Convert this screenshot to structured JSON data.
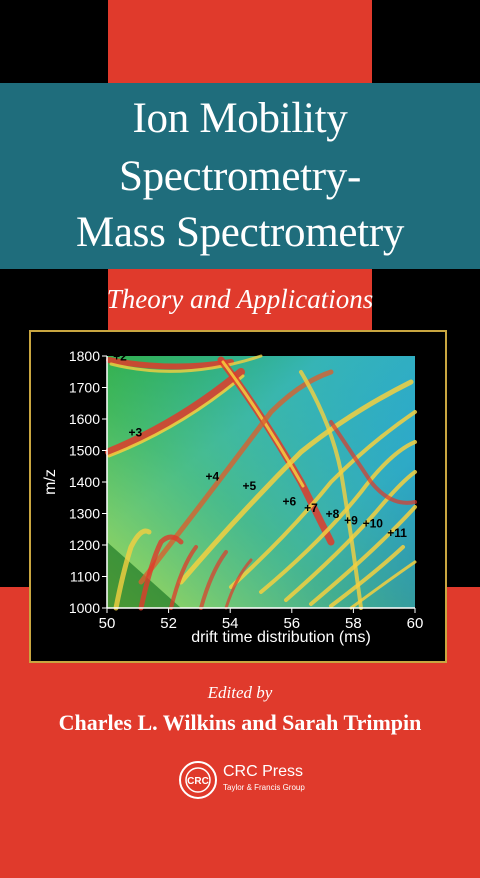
{
  "title_lines": [
    "Ion Mobility",
    "Spectrometry-",
    "Mass Spectrometry"
  ],
  "subtitle": "Theory and Applications",
  "edited_by": "Edited by",
  "editors": "Charles L. Wilkins and Sarah Trimpin",
  "publisher": {
    "logo_text": "CRC",
    "name": "CRC Press",
    "group": "Taylor & Francis Group"
  },
  "colors": {
    "teal_band": "#1f6d7c",
    "red": "#e03a2c",
    "black": "#000000",
    "frame_gold": "#c9a640"
  },
  "chart_data": {
    "type": "heatmap",
    "xlabel": "drift time distribution (ms)",
    "ylabel": "m/z",
    "xlim": [
      50,
      60
    ],
    "ylim": [
      1000,
      1800
    ],
    "x_ticks": [
      "50",
      "52",
      "54",
      "56",
      "58",
      "60"
    ],
    "y_ticks": [
      "1000",
      "1100",
      "1200",
      "1300",
      "1400",
      "1500",
      "1600",
      "1700",
      "1800"
    ],
    "charge_state_labels": [
      {
        "text": "+2",
        "x": 50.2,
        "y": 1785
      },
      {
        "text": "+3",
        "x": 50.7,
        "y": 1545
      },
      {
        "text": "+4",
        "x": 53.2,
        "y": 1405
      },
      {
        "text": "+5",
        "x": 54.4,
        "y": 1375
      },
      {
        "text": "+6",
        "x": 55.7,
        "y": 1325
      },
      {
        "text": "+7",
        "x": 56.4,
        "y": 1305
      },
      {
        "text": "+8",
        "x": 57.1,
        "y": 1285
      },
      {
        "text": "+9",
        "x": 57.7,
        "y": 1265
      },
      {
        "text": "+10",
        "x": 58.3,
        "y": 1255
      },
      {
        "text": "+11",
        "x": 59.1,
        "y": 1225
      }
    ]
  }
}
